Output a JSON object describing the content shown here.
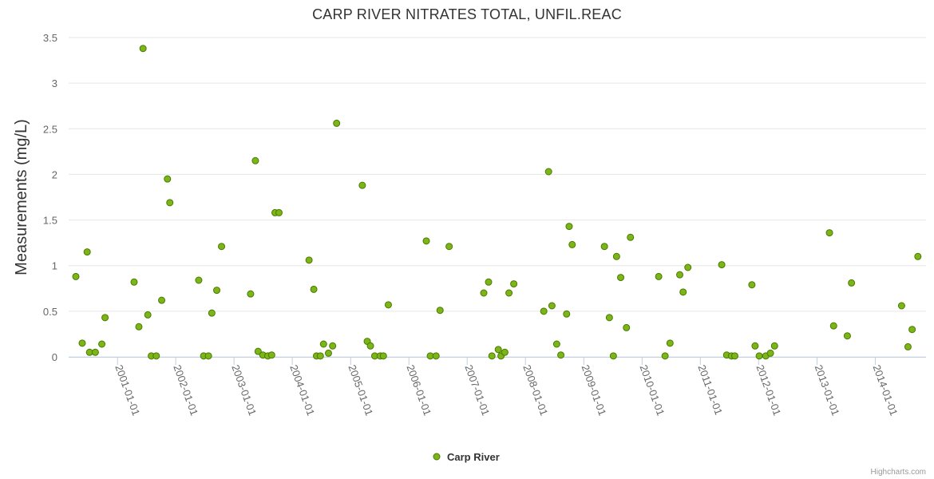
{
  "chart_data": {
    "type": "scatter",
    "title": "CARP RIVER NITRATES TOTAL, UNFIL.REAC",
    "ylabel": "Measurements (mg/L)",
    "xlabel": "",
    "ylim": [
      0,
      3.5
    ],
    "yticks": [
      "0",
      "0.5",
      "1",
      "1.5",
      "2",
      "2.5",
      "3",
      "3.5"
    ],
    "xlim": [
      "2000-03-01",
      "2014-11-15"
    ],
    "xticks": [
      "2001-01-01",
      "2002-01-01",
      "2003-01-01",
      "2004-01-01",
      "2005-01-01",
      "2006-01-01",
      "2007-01-01",
      "2008-01-01",
      "2009-01-01",
      "2010-01-01",
      "2011-01-01",
      "2012-01-01",
      "2013-01-01",
      "2014-01-01"
    ],
    "grid": true,
    "legend": "bottom-center",
    "series": [
      {
        "name": "Carp River",
        "color": "#7cb518",
        "border": "#4a7a00",
        "points": [
          [
            "2000-04-15",
            0.88
          ],
          [
            "2000-05-25",
            0.15
          ],
          [
            "2000-06-25",
            1.15
          ],
          [
            "2000-07-10",
            0.05
          ],
          [
            "2000-08-15",
            0.05
          ],
          [
            "2000-09-25",
            0.14
          ],
          [
            "2000-10-15",
            0.43
          ],
          [
            "2001-04-15",
            0.82
          ],
          [
            "2001-05-15",
            0.33
          ],
          [
            "2001-06-10",
            3.38
          ],
          [
            "2001-07-10",
            0.46
          ],
          [
            "2001-08-01",
            0.01
          ],
          [
            "2001-09-01",
            0.01
          ],
          [
            "2001-10-05",
            0.62
          ],
          [
            "2001-11-10",
            1.95
          ],
          [
            "2001-11-25",
            1.69
          ],
          [
            "2002-05-25",
            0.84
          ],
          [
            "2002-06-25",
            0.01
          ],
          [
            "2002-07-25",
            0.01
          ],
          [
            "2002-08-15",
            0.48
          ],
          [
            "2002-09-15",
            0.73
          ],
          [
            "2002-10-15",
            1.21
          ],
          [
            "2003-04-15",
            0.69
          ],
          [
            "2003-05-15",
            2.15
          ],
          [
            "2003-06-01",
            0.06
          ],
          [
            "2003-07-01",
            0.02
          ],
          [
            "2003-08-01",
            0.01
          ],
          [
            "2003-08-25",
            0.02
          ],
          [
            "2003-09-15",
            1.58
          ],
          [
            "2003-10-10",
            1.58
          ],
          [
            "2004-04-15",
            1.06
          ],
          [
            "2004-05-15",
            0.74
          ],
          [
            "2004-06-01",
            0.01
          ],
          [
            "2004-06-25",
            0.01
          ],
          [
            "2004-07-15",
            0.14
          ],
          [
            "2004-08-15",
            0.04
          ],
          [
            "2004-09-10",
            0.12
          ],
          [
            "2004-10-05",
            2.56
          ],
          [
            "2005-03-15",
            1.88
          ],
          [
            "2005-04-15",
            0.17
          ],
          [
            "2005-05-05",
            0.12
          ],
          [
            "2005-06-01",
            0.01
          ],
          [
            "2005-07-05",
            0.01
          ],
          [
            "2005-07-25",
            0.01
          ],
          [
            "2005-08-25",
            0.57
          ],
          [
            "2006-04-20",
            1.27
          ],
          [
            "2006-05-15",
            0.01
          ],
          [
            "2006-06-20",
            0.01
          ],
          [
            "2006-07-15",
            0.51
          ],
          [
            "2006-09-10",
            1.21
          ],
          [
            "2007-04-15",
            0.7
          ],
          [
            "2007-05-15",
            0.82
          ],
          [
            "2007-06-05",
            0.01
          ],
          [
            "2007-07-15",
            0.08
          ],
          [
            "2007-08-01",
            0.01
          ],
          [
            "2007-08-25",
            0.05
          ],
          [
            "2007-09-20",
            0.7
          ],
          [
            "2007-10-20",
            0.8
          ],
          [
            "2008-04-25",
            0.5
          ],
          [
            "2008-05-25",
            2.03
          ],
          [
            "2008-06-15",
            0.56
          ],
          [
            "2008-07-15",
            0.14
          ],
          [
            "2008-08-10",
            0.02
          ],
          [
            "2008-09-15",
            0.47
          ],
          [
            "2008-10-01",
            1.43
          ],
          [
            "2008-10-20",
            1.23
          ],
          [
            "2009-05-10",
            1.21
          ],
          [
            "2009-06-10",
            0.43
          ],
          [
            "2009-07-05",
            0.01
          ],
          [
            "2009-07-25",
            1.1
          ],
          [
            "2009-08-20",
            0.87
          ],
          [
            "2009-09-25",
            0.32
          ],
          [
            "2009-10-20",
            1.31
          ],
          [
            "2010-04-15",
            0.88
          ],
          [
            "2010-05-25",
            0.01
          ],
          [
            "2010-06-25",
            0.15
          ],
          [
            "2010-08-25",
            0.9
          ],
          [
            "2010-09-15",
            0.71
          ],
          [
            "2010-10-15",
            0.98
          ],
          [
            "2011-05-15",
            1.01
          ],
          [
            "2011-06-15",
            0.02
          ],
          [
            "2011-07-15",
            0.01
          ],
          [
            "2011-08-05",
            0.01
          ],
          [
            "2011-11-20",
            0.79
          ],
          [
            "2011-12-10",
            0.12
          ],
          [
            "2012-01-05",
            0.01
          ],
          [
            "2012-02-15",
            0.01
          ],
          [
            "2012-03-15",
            0.04
          ],
          [
            "2012-04-10",
            0.12
          ],
          [
            "2013-03-20",
            1.36
          ],
          [
            "2013-04-15",
            0.34
          ],
          [
            "2013-07-10",
            0.23
          ],
          [
            "2013-08-05",
            0.81
          ],
          [
            "2014-06-15",
            0.56
          ],
          [
            "2014-07-25",
            0.11
          ],
          [
            "2014-08-20",
            0.3
          ],
          [
            "2014-09-25",
            1.1
          ]
        ]
      }
    ],
    "credits": "Highcharts.com"
  }
}
